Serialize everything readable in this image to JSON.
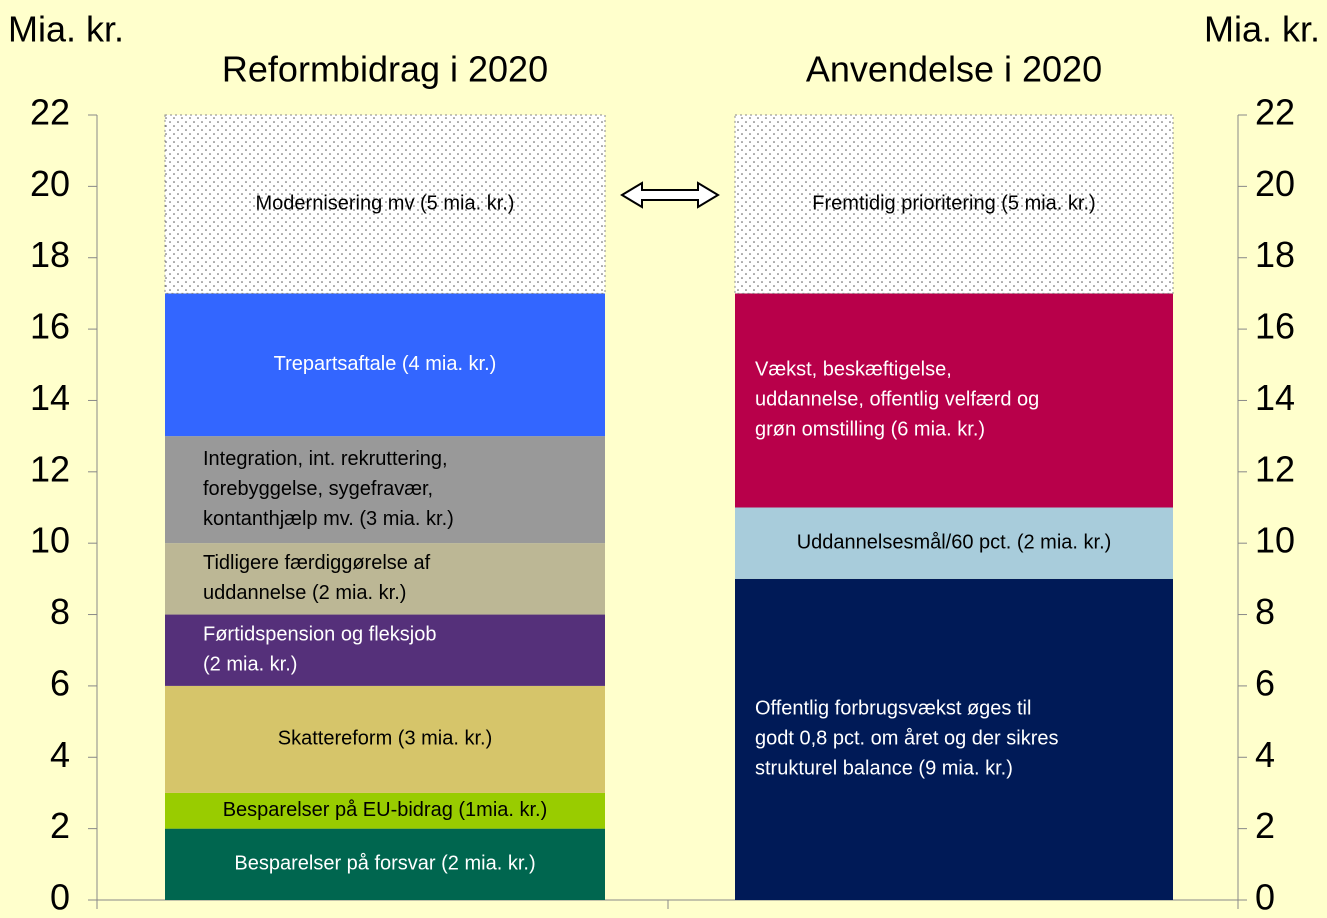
{
  "chart_data": {
    "type": "stacked_bar",
    "ylabel_left": "Mia. kr.",
    "ylabel_right": "Mia. kr.",
    "ylim": [
      0,
      22
    ],
    "yticks": [
      0,
      2,
      4,
      6,
      8,
      10,
      12,
      14,
      16,
      18,
      20,
      22
    ],
    "bars": [
      {
        "title": "Reformbidrag i 2020",
        "segments": [
          {
            "label": [
              "Besparelser på forsvar (2 mia. kr.)"
            ],
            "value": 2,
            "color": "#00664F"
          },
          {
            "label": [
              "Besparelser på EU-bidrag (1mia. kr.)"
            ],
            "value": 1,
            "color": "#99CC00"
          },
          {
            "label": [
              "Skattereform (3 mia. kr.)"
            ],
            "value": 3,
            "color": "#D6C56A"
          },
          {
            "label": [
              "Førtidspension og fleksjob",
              "(2 mia. kr.)"
            ],
            "value": 2,
            "color": "#55307A"
          },
          {
            "label": [
              "Tidligere færdiggørelse af",
              "uddannelse (2 mia. kr.)"
            ],
            "value": 2,
            "color": "#BCB795"
          },
          {
            "label": [
              "Integration, int. rekruttering,",
              "forebyggelse, sygefravær,",
              "kontanthjælp mv. (3 mia. kr.)"
            ],
            "value": 3,
            "color": "#999999"
          },
          {
            "label": [
              "Trepartsaftale (4 mia. kr.)"
            ],
            "value": 4,
            "color": "#3366FF"
          },
          {
            "label": [
              "Modernisering mv (5 mia. kr.)"
            ],
            "value": 5,
            "color": "#FFFFFF",
            "pattern": "dots"
          }
        ]
      },
      {
        "title": "Anvendelse i 2020",
        "segments": [
          {
            "label": [
              "Offentlig forbrugsvækst øges til",
              "godt 0,8 pct. om året og der sikres",
              "strukturel balance (9 mia. kr.)"
            ],
            "value": 9,
            "color": "#001A57"
          },
          {
            "label": [
              "Uddannelsesmål/60 pct. (2 mia. kr.)"
            ],
            "value": 2,
            "color": "#A8CCDB"
          },
          {
            "label": [
              "Vækst, beskæftigelse,",
              "uddannelse, offentlig velfærd og",
              "grøn omstilling (6 mia. kr.)"
            ],
            "value": 6,
            "color": "#B8004A"
          },
          {
            "label": [
              "Fremtidig prioritering (5 mia. kr.)"
            ],
            "value": 5,
            "color": "#FFFFFF",
            "pattern": "dots"
          }
        ]
      }
    ]
  }
}
